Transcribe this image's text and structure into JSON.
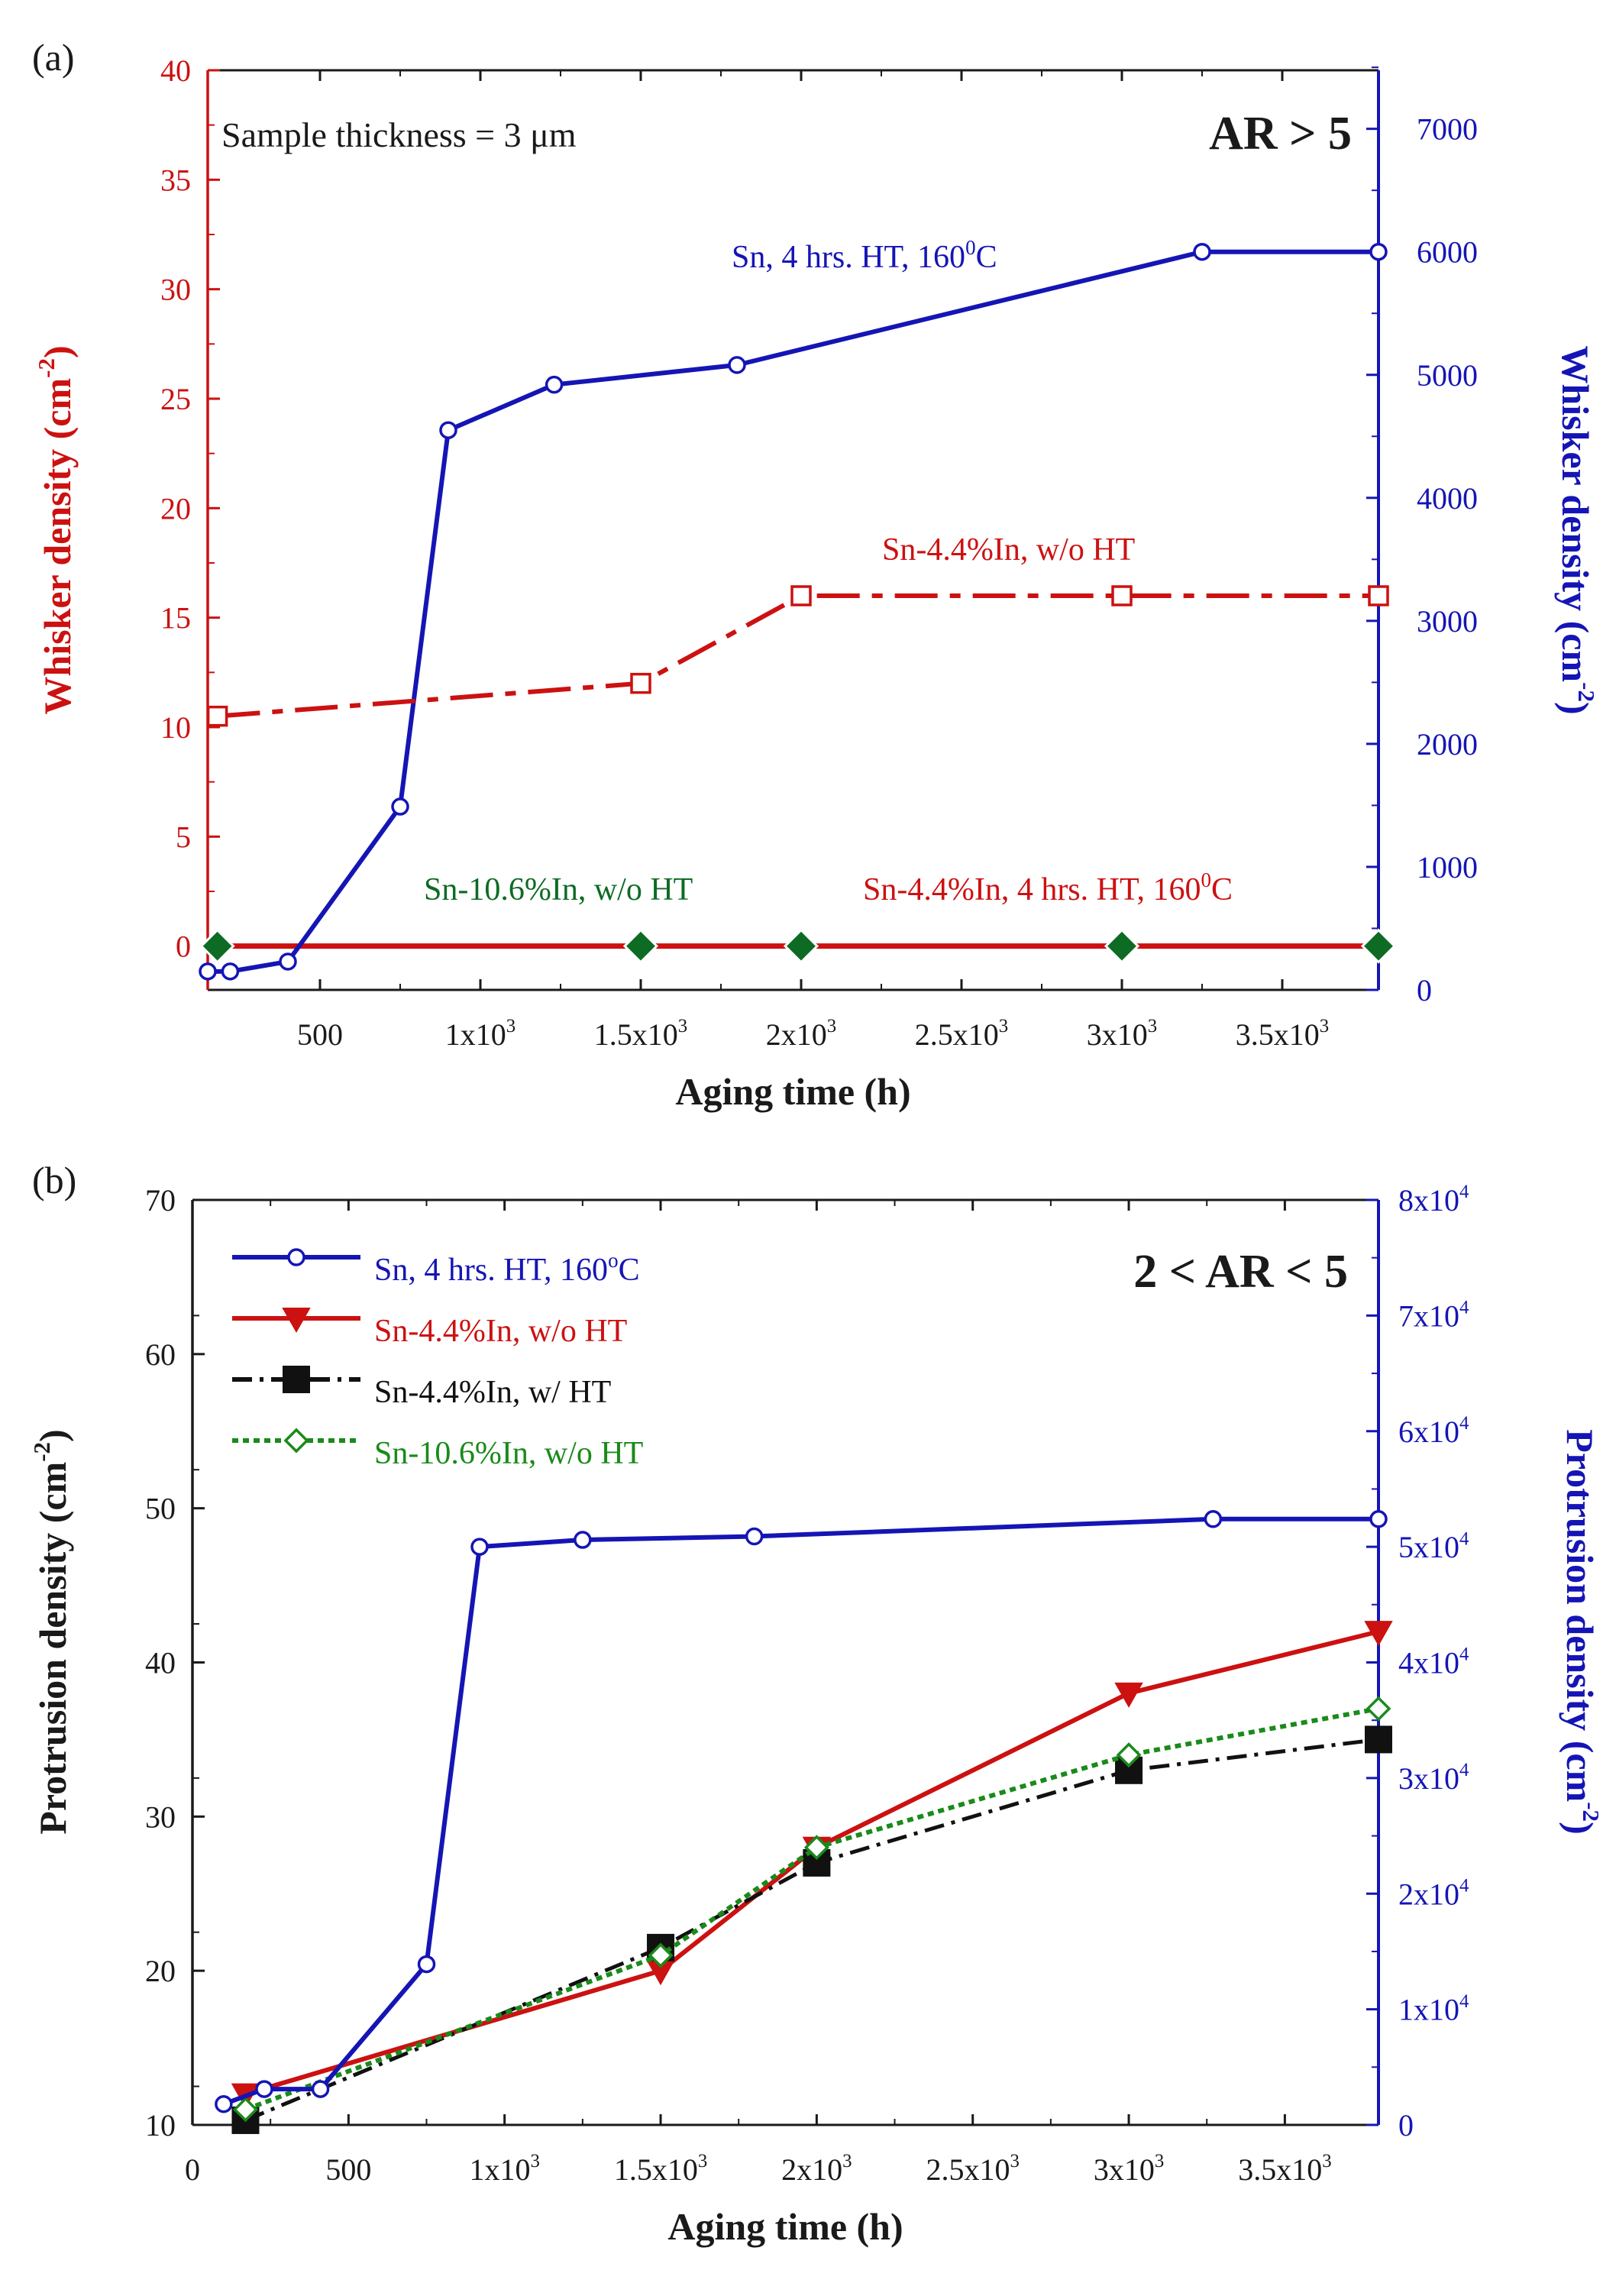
{
  "colors": {
    "axis": "#1a1a1a",
    "left_axis_a": "#cc1111",
    "right_axis": "#1515b5",
    "sn": "#1515b5",
    "sn44": "#cc1111",
    "sn44_ht": "#111111",
    "sn106": "#1a8a1a",
    "sn106_dark": "#0d6b24"
  },
  "chart_data": [
    {
      "panel": "(a)",
      "type": "line",
      "xlabel": "Aging time (h)",
      "xlim": [
        150,
        3800
      ],
      "xticks": [
        500,
        1000,
        1500,
        2000,
        2500,
        3000,
        3500
      ],
      "xtick_labels": [
        {
          "base": "500",
          "exp": ""
        },
        {
          "base": "1x10",
          "exp": "3"
        },
        {
          "base": "1.5x10",
          "exp": "3"
        },
        {
          "base": "2x10",
          "exp": "3"
        },
        {
          "base": "2.5x10",
          "exp": "3"
        },
        {
          "base": "3x10",
          "exp": "3"
        },
        {
          "base": "3.5x10",
          "exp": "3"
        }
      ],
      "ylabel_left": {
        "text": "Whisker density (cm",
        "exp": "-2",
        "close": ")"
      },
      "ylim_left": [
        -2,
        40
      ],
      "yticks_left": [
        0,
        5,
        10,
        15,
        20,
        25,
        30,
        35,
        40
      ],
      "ylabel_right": {
        "text": "Whisker density (cm",
        "exp": "-2",
        "close": ")"
      },
      "ylim_right": [
        0,
        7476
      ],
      "yticks_right": [
        0,
        1000,
        2000,
        3000,
        4000,
        5000,
        6000,
        7000
      ],
      "annotations": {
        "thickness": {
          "pre": "Sample thickness = 3 ",
          "unit": "μm"
        },
        "regime": "AR > 5",
        "sn_label": {
          "text": "Sn, 4 hrs. HT, 160",
          "exp": "0",
          "post": "C"
        },
        "sn44_label": "Sn-4.4%In, w/o HT",
        "sn106_label": "Sn-10.6%In, w/o HT",
        "sn44ht_label": {
          "text": "Sn-4.4%In, 4 hrs. HT, 160",
          "exp": "0",
          "post": "C"
        }
      },
      "series": [
        {
          "name": "Sn, 4 hrs. HT, 160°C",
          "axis": "right",
          "marker": "circle-open",
          "x": [
            150,
            220,
            400,
            750,
            900,
            1230,
            1800,
            3250,
            3800
          ],
          "y": [
            150,
            150,
            230,
            1490,
            4550,
            4920,
            5080,
            6000,
            6000
          ]
        },
        {
          "name": "Sn-4.4%In, w/o HT",
          "axis": "left",
          "marker": "square-open",
          "dash": "long-short",
          "x": [
            180,
            1500,
            2000,
            3000,
            3800
          ],
          "y": [
            10.5,
            12,
            16,
            16,
            16
          ]
        },
        {
          "name": "Sn-4.4%In, 4 hrs. HT, 160°C",
          "axis": "left",
          "marker": "none",
          "x": [
            150,
            3800
          ],
          "y": [
            0,
            0
          ]
        },
        {
          "name": "Sn-10.6%In, w/o HT",
          "axis": "left",
          "marker": "diamond",
          "x": [
            180,
            1500,
            2000,
            3000,
            3800
          ],
          "y": [
            0,
            0,
            0,
            0,
            0
          ]
        }
      ]
    },
    {
      "panel": "(b)",
      "type": "line",
      "xlabel": "Aging time (h)",
      "xlim": [
        0,
        3800
      ],
      "xticks": [
        0,
        500,
        1000,
        1500,
        2000,
        2500,
        3000,
        3500
      ],
      "xtick_labels": [
        {
          "base": "0",
          "exp": ""
        },
        {
          "base": "500",
          "exp": ""
        },
        {
          "base": "1x10",
          "exp": "3"
        },
        {
          "base": "1.5x10",
          "exp": "3"
        },
        {
          "base": "2x10",
          "exp": "3"
        },
        {
          "base": "2.5x10",
          "exp": "3"
        },
        {
          "base": "3x10",
          "exp": "3"
        },
        {
          "base": "3.5x10",
          "exp": "3"
        }
      ],
      "ylabel_left": {
        "text": "Protrusion density (cm",
        "exp": "-2",
        "close": ")"
      },
      "ylim_left": [
        10,
        70
      ],
      "yticks_left": [
        10,
        20,
        30,
        40,
        50,
        60,
        70
      ],
      "ylabel_right": {
        "text": "Protrusion density (cm",
        "exp": "-2",
        "close": ")"
      },
      "ylim_right": [
        0,
        80000
      ],
      "yticks_right": [
        0,
        10000,
        20000,
        30000,
        40000,
        50000,
        60000,
        70000,
        80000
      ],
      "ytick_labels_right": [
        {
          "base": "0",
          "exp": ""
        },
        {
          "base": "1x10",
          "exp": "4"
        },
        {
          "base": "2x10",
          "exp": "4"
        },
        {
          "base": "3x10",
          "exp": "4"
        },
        {
          "base": "4x10",
          "exp": "4"
        },
        {
          "base": "5x10",
          "exp": "4"
        },
        {
          "base": "6x10",
          "exp": "4"
        },
        {
          "base": "7x10",
          "exp": "4"
        },
        {
          "base": "8x10",
          "exp": "4"
        }
      ],
      "annotations": {
        "regime": "2 < AR < 5"
      },
      "legend": [
        {
          "label": "Sn, 4 hrs. HT, 160",
          "exp": "o",
          "post": "C",
          "series": 0
        },
        {
          "label": "Sn-4.4%In, w/o HT",
          "exp": "",
          "post": "",
          "series": 1
        },
        {
          "label": "Sn-4.4%In, w/ HT",
          "exp": "",
          "post": "",
          "series": 2
        },
        {
          "label": "Sn-10.6%In, w/o HT",
          "exp": "",
          "post": "",
          "series": 3
        }
      ],
      "series": [
        {
          "name": "Sn, 4 hrs. HT, 160°C",
          "axis": "right",
          "marker": "circle-open",
          "x": [
            100,
            230,
            410,
            750,
            920,
            1250,
            1800,
            3270,
            3800
          ],
          "y": [
            1800,
            3100,
            3100,
            13900,
            50000,
            50600,
            50900,
            52400,
            52400
          ]
        },
        {
          "name": "Sn-4.4%In, w/o HT",
          "axis": "left",
          "marker": "triangle-down",
          "x": [
            170,
            1500,
            2000,
            3000,
            3800
          ],
          "y": [
            12,
            20,
            28,
            38,
            42
          ]
        },
        {
          "name": "Sn-4.4%In, w/ HT",
          "axis": "left",
          "marker": "square-filled",
          "dash": "dash-dot",
          "x": [
            170,
            1500,
            2000,
            3000,
            3800
          ],
          "y": [
            10.3,
            21.5,
            27,
            33,
            35
          ]
        },
        {
          "name": "Sn-10.6%In, w/o HT",
          "axis": "left",
          "marker": "diamond-open",
          "dash": "dotted",
          "x": [
            170,
            1500,
            2000,
            3000,
            3800
          ],
          "y": [
            11,
            21,
            28,
            34,
            37
          ]
        }
      ]
    }
  ]
}
